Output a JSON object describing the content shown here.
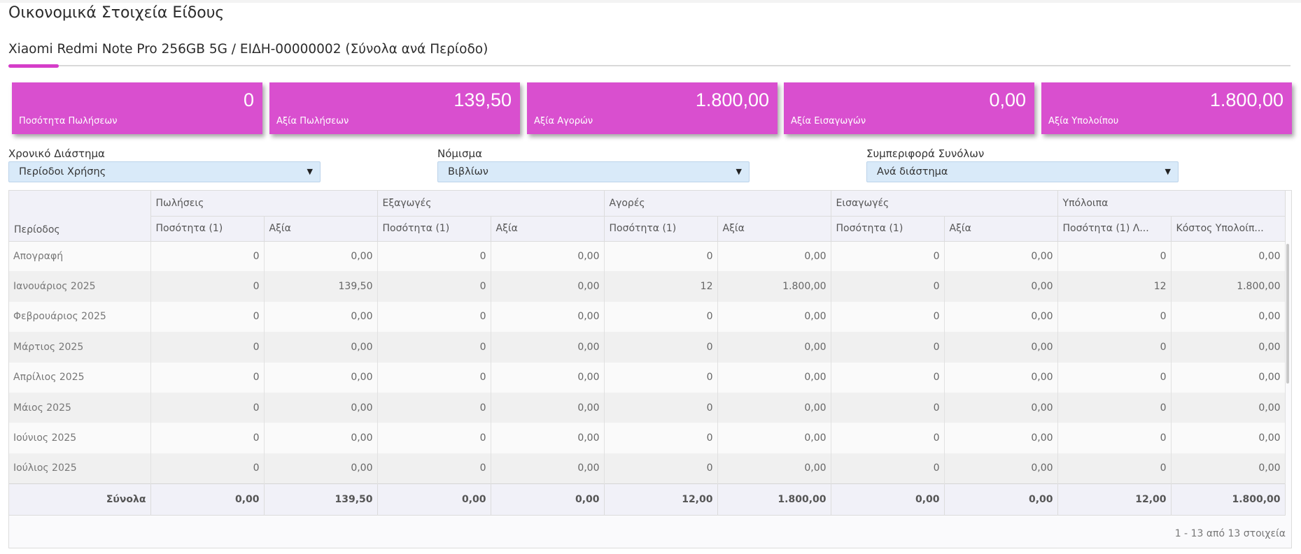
{
  "page": {
    "title": "Οικονομικά Στοιχεία Είδους",
    "subtitle": "Xiaomi Redmi Note Pro 256GB 5G / ΕΙΔΗ-00000002 (Σύνολα ανά Περίοδο)"
  },
  "colors": {
    "accent": "#d53dc9",
    "card": "#d94fcf",
    "select_bg": "#d9eaf9"
  },
  "cards": [
    {
      "value": "0",
      "label": "Ποσότητα Πωλήσεων"
    },
    {
      "value": "139,50",
      "label": "Αξία Πωλήσεων"
    },
    {
      "value": "1.800,00",
      "label": "Αξία Αγορών"
    },
    {
      "value": "0,00",
      "label": "Αξία Εισαγωγών"
    },
    {
      "value": "1.800,00",
      "label": "Αξία Υπολοίπου"
    }
  ],
  "filters": [
    {
      "label": "Χρονικό Διάστημα",
      "value": "Περίοδοι Χρήσης"
    },
    {
      "label": "Νόμισμα",
      "value": "Βιβλίων"
    },
    {
      "label": "Συμπεριφορά Συνόλων",
      "value": "Ανά διάστημα"
    }
  ],
  "table": {
    "period_header": "Περίοδος",
    "groups": [
      "Πωλήσεις",
      "Εξαγωγές",
      "Αγορές",
      "Εισαγωγές",
      "Υπόλοιπα"
    ],
    "subheaders": [
      "Ποσότητα (1)",
      "Αξία",
      "Ποσότητα (1)",
      "Αξία",
      "Ποσότητα (1)",
      "Αξία",
      "Ποσότητα (1)",
      "Αξία",
      "Ποσότητα (1) Λ...",
      "Κόστος Υπολοίπ..."
    ],
    "rows": [
      [
        "Απογραφή",
        "0",
        "0,00",
        "0",
        "0,00",
        "0",
        "0,00",
        "0",
        "0,00",
        "0",
        "0,00"
      ],
      [
        "Ιανουάριος 2025",
        "0",
        "139,50",
        "0",
        "0,00",
        "12",
        "1.800,00",
        "0",
        "0,00",
        "12",
        "1.800,00"
      ],
      [
        "Φεβρουάριος 2025",
        "0",
        "0,00",
        "0",
        "0,00",
        "0",
        "0,00",
        "0",
        "0,00",
        "0",
        "0,00"
      ],
      [
        "Μάρτιος 2025",
        "0",
        "0,00",
        "0",
        "0,00",
        "0",
        "0,00",
        "0",
        "0,00",
        "0",
        "0,00"
      ],
      [
        "Απρίλιος 2025",
        "0",
        "0,00",
        "0",
        "0,00",
        "0",
        "0,00",
        "0",
        "0,00",
        "0",
        "0,00"
      ],
      [
        "Μάιος 2025",
        "0",
        "0,00",
        "0",
        "0,00",
        "0",
        "0,00",
        "0",
        "0,00",
        "0",
        "0,00"
      ],
      [
        "Ιούνιος 2025",
        "0",
        "0,00",
        "0",
        "0,00",
        "0",
        "0,00",
        "0",
        "0,00",
        "0",
        "0,00"
      ],
      [
        "Ιούλιος 2025",
        "0",
        "0,00",
        "0",
        "0,00",
        "0",
        "0,00",
        "0",
        "0,00",
        "0",
        "0,00"
      ]
    ],
    "totals": [
      "Σύνολα",
      "0,00",
      "139,50",
      "0,00",
      "0,00",
      "12,00",
      "1.800,00",
      "0,00",
      "0,00",
      "12,00",
      "1.800,00"
    ],
    "pager": "1 - 13 από 13 στοιχεία"
  }
}
